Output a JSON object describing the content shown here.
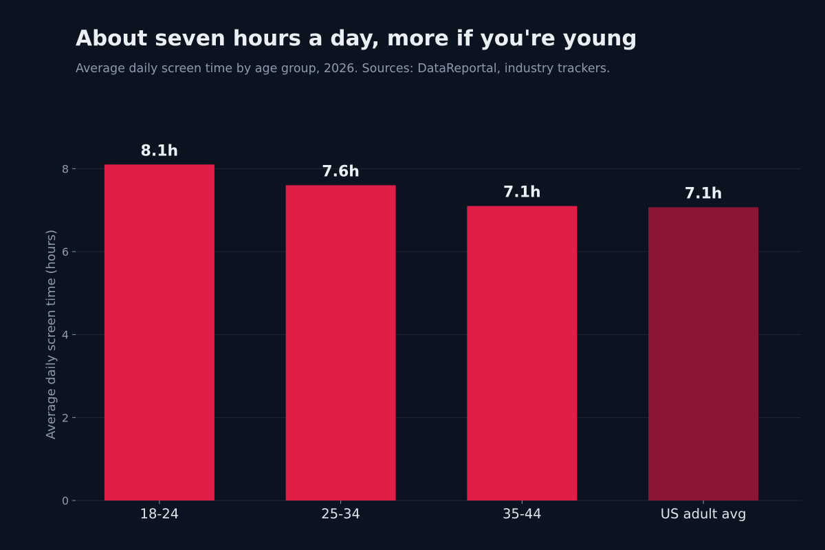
{
  "chart_data": {
    "type": "bar",
    "title": "About seven hours a day, more if you're young",
    "subtitle": "Average daily screen time by age group, 2026. Sources: DataReportal, industry trackers.",
    "xlabel": "",
    "ylabel": "Average daily screen time (hours)",
    "categories": [
      "18-24",
      "25-34",
      "35-44",
      "US adult avg"
    ],
    "values": [
      8.1,
      7.6,
      7.1,
      7.07
    ],
    "value_labels": [
      "8.1h",
      "7.6h",
      "7.1h",
      "7.1h"
    ],
    "ylim": [
      0,
      9
    ],
    "yticks": [
      0,
      2,
      4,
      6,
      8
    ],
    "ytick_labels": [
      "0",
      "2",
      "4",
      "6",
      "8"
    ],
    "grid": true,
    "legend": "none",
    "colors": {
      "background": "#0b1220",
      "bar": "#e01e48",
      "bar_highlight": "#8c1535",
      "grid": "#1c2a36"
    },
    "bar_colors": [
      "#e01e48",
      "#e01e48",
      "#e01e48",
      "#8c1535"
    ]
  }
}
